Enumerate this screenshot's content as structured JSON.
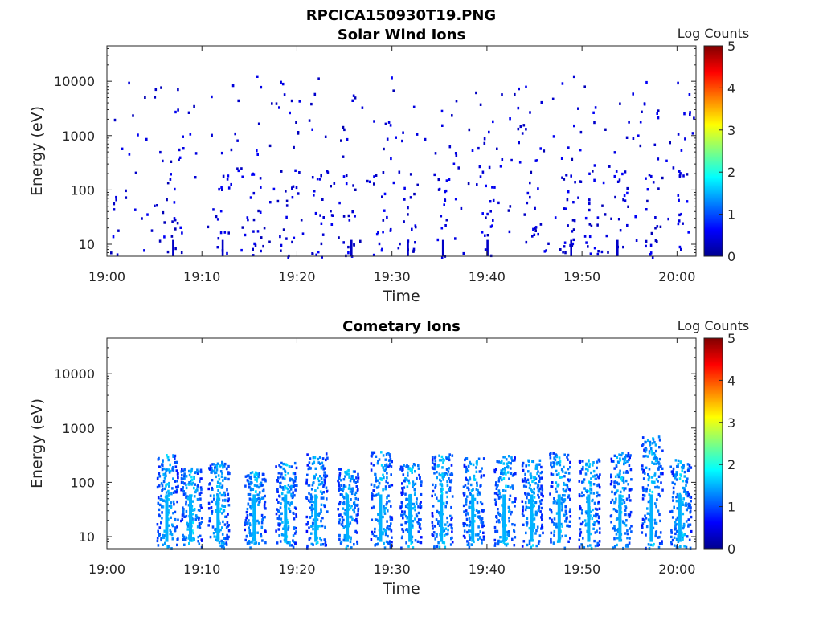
{
  "figure_title": "RPCICA150930T19.PNG",
  "chart_data": [
    {
      "type": "heatmap",
      "title": "Solar Wind Ions",
      "xlabel": "Time",
      "ylabel": "Energy (eV)",
      "x_tick_labels": [
        "19:00",
        "19:10",
        "19:20",
        "19:30",
        "19:40",
        "19:50",
        "20:00"
      ],
      "x_tick_minutes": [
        0,
        10,
        20,
        30,
        40,
        50,
        60
      ],
      "xlim_minutes": [
        0,
        62
      ],
      "yscale": "log",
      "ylim": [
        6,
        45000
      ],
      "y_tick_labels": [
        "10",
        "100",
        "1000",
        "10000"
      ],
      "y_tick_values": [
        10,
        100,
        1000,
        10000
      ],
      "colorbar": {
        "label": "Log Counts",
        "min": 0,
        "max": 5,
        "tick_labels": [
          "0",
          "1",
          "2",
          "3",
          "4",
          "5"
        ],
        "colormap": "jet"
      },
      "density": "sparse",
      "active_bursts_minutes": [
        6.5,
        12,
        15.5,
        18.8,
        22,
        25.5,
        28.5,
        31.7,
        35.2,
        40,
        44.7,
        48.5,
        51,
        54,
        57.3,
        60.5
      ]
    },
    {
      "type": "heatmap",
      "title": "Cometary Ions",
      "xlabel": "Time",
      "ylabel": "Energy (eV)",
      "x_tick_labels": [
        "19:00",
        "19:10",
        "19:20",
        "19:30",
        "19:40",
        "19:50",
        "20:00"
      ],
      "x_tick_minutes": [
        0,
        10,
        20,
        30,
        40,
        50,
        60
      ],
      "xlim_minutes": [
        0,
        62
      ],
      "yscale": "log",
      "ylim": [
        6,
        45000
      ],
      "y_tick_labels": [
        "10",
        "100",
        "1000",
        "10000"
      ],
      "y_tick_values": [
        10,
        100,
        1000,
        10000
      ],
      "colorbar": {
        "label": "Log Counts",
        "min": 0,
        "max": 5,
        "tick_labels": [
          "0",
          "1",
          "2",
          "3",
          "4",
          "5"
        ],
        "colormap": "jet"
      },
      "density": "bursts",
      "active_bursts_minutes": [
        6.3,
        8.8,
        11.7,
        15.5,
        18.8,
        22,
        25.3,
        28.8,
        31.9,
        35.2,
        38.5,
        41.8,
        44.7,
        47.6,
        50.7,
        54,
        57.3,
        60.3
      ]
    }
  ]
}
